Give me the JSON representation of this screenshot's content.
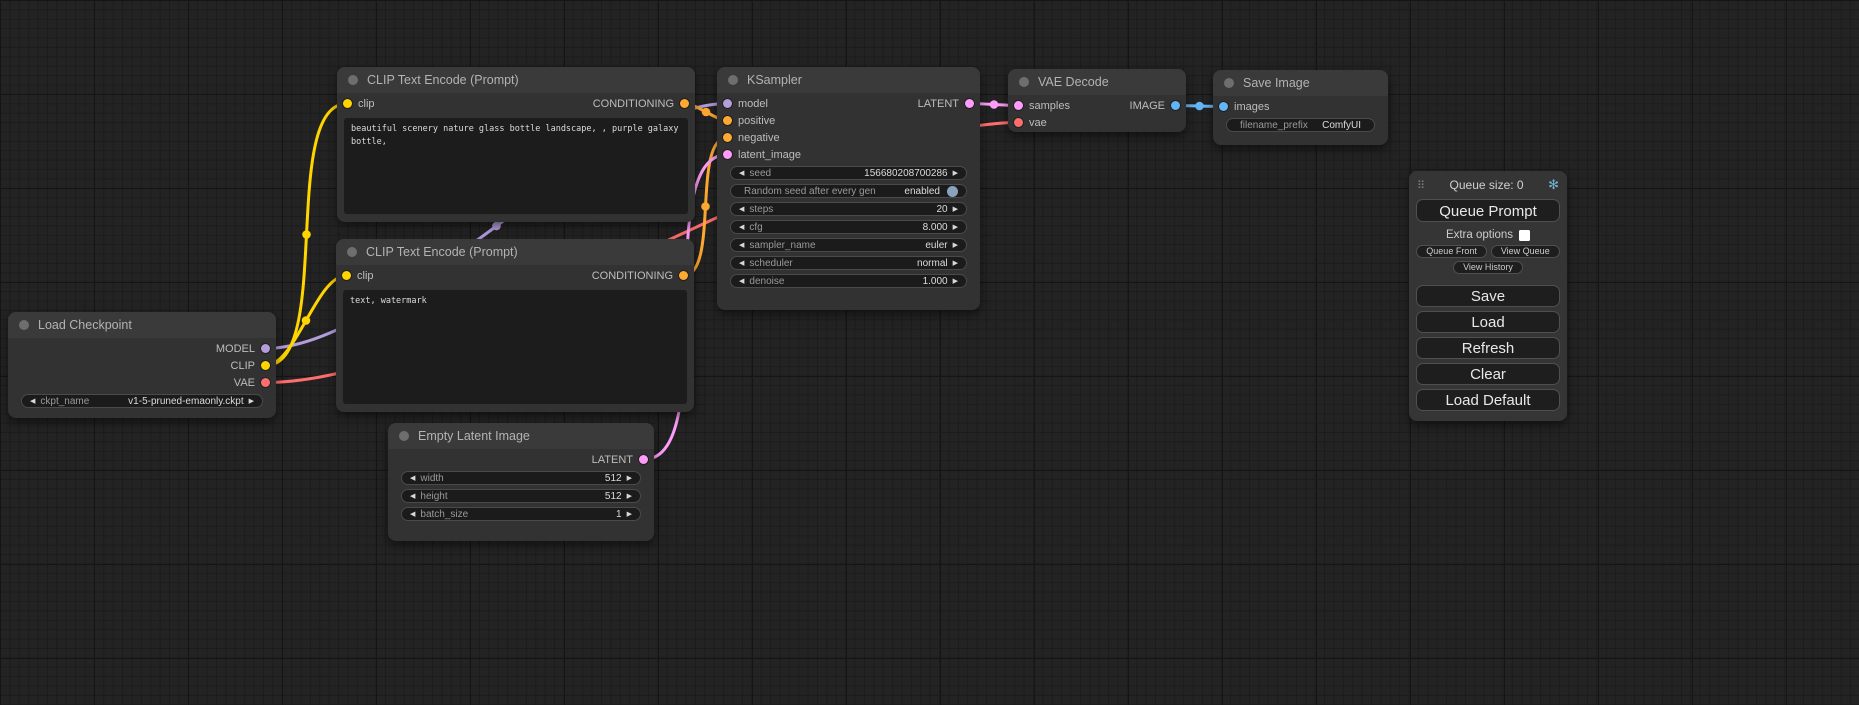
{
  "type_colors": {
    "MODEL": "#B39DDB",
    "CLIP": "#FFD500",
    "VAE": "#FF6E6E",
    "CONDITIONING": "#FFA931",
    "LATENT": "#FF9CF9",
    "IMAGE": "#64B5F6"
  },
  "nodes": [
    {
      "id": "load_checkpoint",
      "title": "Load Checkpoint",
      "inputs": [],
      "outputs": [
        {
          "name": "MODEL",
          "type": "MODEL"
        },
        {
          "name": "CLIP",
          "type": "CLIP"
        },
        {
          "name": "VAE",
          "type": "VAE"
        }
      ],
      "widgets": [
        {
          "label": "ckpt_name",
          "value": "v1-5-pruned-emaonly.ckpt",
          "arrows": true
        }
      ]
    },
    {
      "id": "clip_text_encode_positive",
      "title": "CLIP Text Encode (Prompt)",
      "inputs": [
        {
          "name": "clip",
          "type": "CLIP"
        }
      ],
      "outputs": [
        {
          "name": "CONDITIONING",
          "type": "CONDITIONING"
        }
      ],
      "text": "beautiful scenery nature glass bottle landscape, , purple galaxy bottle,"
    },
    {
      "id": "clip_text_encode_negative",
      "title": "CLIP Text Encode (Prompt)",
      "inputs": [
        {
          "name": "clip",
          "type": "CLIP"
        }
      ],
      "outputs": [
        {
          "name": "CONDITIONING",
          "type": "CONDITIONING"
        }
      ],
      "text": "text, watermark"
    },
    {
      "id": "ksampler",
      "title": "KSampler",
      "inputs": [
        {
          "name": "model",
          "type": "MODEL"
        },
        {
          "name": "positive",
          "type": "CONDITIONING"
        },
        {
          "name": "negative",
          "type": "CONDITIONING"
        },
        {
          "name": "latent_image",
          "type": "LATENT"
        }
      ],
      "outputs": [
        {
          "name": "LATENT",
          "type": "LATENT"
        }
      ],
      "widgets": [
        {
          "label": "seed",
          "value": "156680208700286",
          "arrows": true
        },
        {
          "label": "Random seed after every gen",
          "value": "enabled",
          "arrows": false,
          "toggle": true
        },
        {
          "label": "steps",
          "value": "20",
          "arrows": true
        },
        {
          "label": "cfg",
          "value": "8.000",
          "arrows": true
        },
        {
          "label": "sampler_name",
          "value": "euler",
          "arrows": true
        },
        {
          "label": "scheduler",
          "value": "normal",
          "arrows": true
        },
        {
          "label": "denoise",
          "value": "1.000",
          "arrows": true
        }
      ]
    },
    {
      "id": "vae_decode",
      "title": "VAE Decode",
      "inputs": [
        {
          "name": "samples",
          "type": "LATENT"
        },
        {
          "name": "vae",
          "type": "VAE"
        }
      ],
      "outputs": [
        {
          "name": "IMAGE",
          "type": "IMAGE"
        }
      ],
      "widgets": []
    },
    {
      "id": "save_image",
      "title": "Save Image",
      "inputs": [
        {
          "name": "images",
          "type": "IMAGE"
        }
      ],
      "outputs": [],
      "widgets": [
        {
          "label": "filename_prefix",
          "value": "ComfyUI",
          "arrows": false
        }
      ]
    },
    {
      "id": "empty_latent_image",
      "title": "Empty Latent Image",
      "inputs": [],
      "outputs": [
        {
          "name": "LATENT",
          "type": "LATENT"
        }
      ],
      "widgets": [
        {
          "label": "width",
          "value": "512",
          "arrows": true
        },
        {
          "label": "height",
          "value": "512",
          "arrows": true
        },
        {
          "label": "batch_size",
          "value": "1",
          "arrows": true
        }
      ]
    }
  ],
  "queue_panel": {
    "queue_size_label": "Queue size: 0",
    "queue_prompt": "Queue Prompt",
    "extra_options": "Extra options",
    "queue_front": "Queue Front",
    "view_queue": "View Queue",
    "view_history": "View History",
    "save": "Save",
    "load": "Load",
    "refresh": "Refresh",
    "clear": "Clear",
    "load_default": "Load Default",
    "gear_color": "#6fb3d2",
    "gear_glyph": "✻",
    "handle_glyph": "⠿"
  }
}
